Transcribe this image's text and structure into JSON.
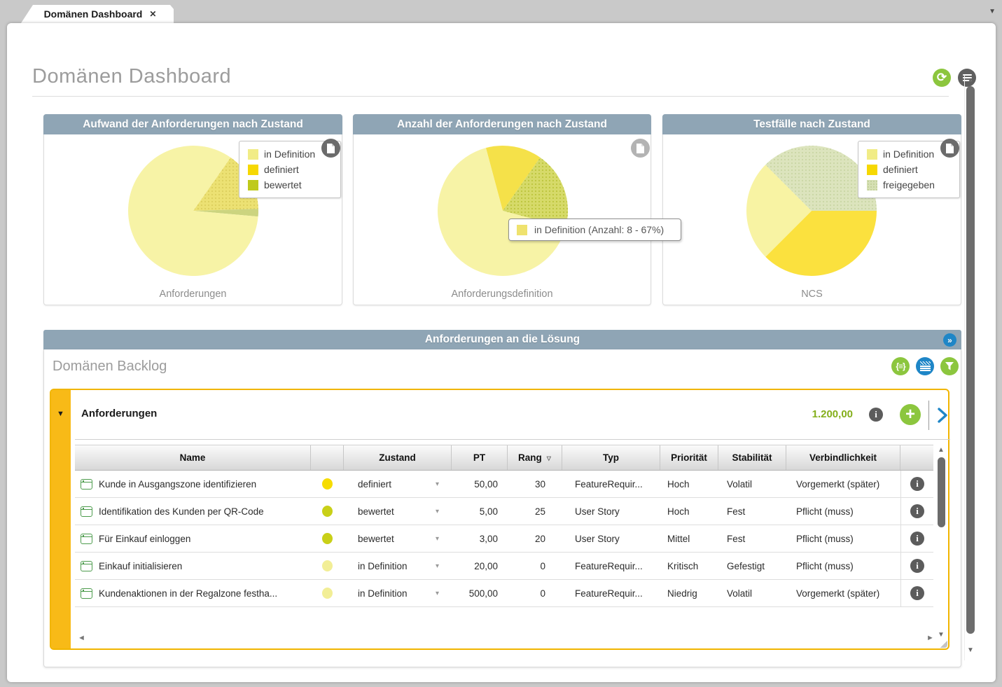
{
  "tab": {
    "title": "Domänen Dashboard"
  },
  "page": {
    "title": "Domänen Dashboard"
  },
  "glyphs": {
    "close": "✕",
    "caret_down": "▼",
    "refresh": "⟳",
    "double_chevron": "»",
    "braces_list": "{≡}",
    "plus": "+",
    "info": "i",
    "dropdown": "▾",
    "sort_down": "▽",
    "up": "▲",
    "down": "▼",
    "left": "◄",
    "right": "►",
    "collapse": "▼"
  },
  "colors": {
    "header_bar": "#8fa5b5",
    "accent_blue": "#1e86c7",
    "accent_green": "#8cc63e",
    "gold_border": "#f1b500",
    "total_green": "#84af1b"
  },
  "chart_data": [
    {
      "type": "pie",
      "title": "Aufwand der Anforderungen nach Zustand",
      "footer_label": "Anforderungen",
      "rotate": 35,
      "segments": [
        {
          "label": "definiert",
          "pct": 14.8,
          "color": "#ece173",
          "dot_color": "#d9cb58"
        },
        {
          "label": "bewertet",
          "pct": 1.9,
          "color": "#ccd47f"
        },
        {
          "label": "in Definition",
          "pct": 83.3,
          "color": "#f7f3a6"
        }
      ]
    },
    {
      "type": "pie",
      "title": "Anzahl der Anforderungen nach Zustand",
      "footer_label": "Anforderungsdefinition",
      "rotate": 345,
      "segments": [
        {
          "label": "definiert",
          "pct": 13.9,
          "color": "#f5e149"
        },
        {
          "label": "bewertet",
          "pct": 19.4,
          "color": "#d6da69",
          "dot_color": "#b7c135"
        },
        {
          "label": "in Definition",
          "pct": 66.7,
          "count": 8,
          "color": "#f7f3a6"
        }
      ]
    },
    {
      "type": "pie",
      "title": "Testfälle nach Zustand",
      "footer_label": "NCS",
      "rotate": 90,
      "segments": [
        {
          "label": "definiert",
          "pct": 37.5,
          "color": "#fbe13e"
        },
        {
          "label": "in Definition",
          "pct": 25.0,
          "color": "#f8f3a3"
        },
        {
          "label": "freigegeben",
          "pct": 37.5,
          "color": "#dce4bd",
          "dot_color": "#c6d3a0"
        }
      ]
    }
  ],
  "panels": [
    {
      "title": "Aufwand der Anforderungen nach Zustand",
      "footer_label": "Anforderungen",
      "legend": [
        {
          "label": "in Definition",
          "color": "#f1ec86"
        },
        {
          "label": "definiert",
          "color": "#f6d802"
        },
        {
          "label": "bewertet",
          "color": "#bfca1b"
        }
      ]
    },
    {
      "title": "Anzahl der Anforderungen nach Zustand",
      "footer_label": "Anforderungsdefinition",
      "tooltip": {
        "text": "in Definition (Anzahl: 8 - 67%)",
        "swatch_color": "#efe26e"
      }
    },
    {
      "title": "Testfälle nach Zustand",
      "footer_label": "NCS",
      "legend": [
        {
          "label": "in Definition",
          "color": "#f1ec86"
        },
        {
          "label": "definiert",
          "color": "#f6d802"
        },
        {
          "label": "freigegeben",
          "color": "#d6e0b4",
          "dot_color": "#c3d19b"
        }
      ]
    }
  ],
  "section": {
    "title": "Anforderungen an die Lösung",
    "subtitle": "Domänen Backlog"
  },
  "backlog": {
    "group_title": "Anforderungen",
    "group_total": "1.200,00",
    "columns": {
      "name": "Name",
      "zustand": "Zustand",
      "pt": "PT",
      "rang": "Rang",
      "typ": "Typ",
      "prioritaet": "Priorität",
      "stabilitaet": "Stabilität",
      "verbindlichkeit": "Verbindlichkeit"
    },
    "rows": [
      {
        "name": "Kunde in Ausgangszone identifizieren",
        "dot_color": "#f6dc00",
        "zustand": "definiert",
        "pt": "50,00",
        "rang": "30",
        "typ": "FeatureRequir...",
        "prioritaet": "Hoch",
        "stabilitaet": "Volatil",
        "verbindlichkeit": "Vorgemerkt (später)"
      },
      {
        "name": "Identifikation des Kunden per QR-Code",
        "dot_color": "#c9d018",
        "zustand": "bewertet",
        "pt": "5,00",
        "rang": "25",
        "typ": "User Story",
        "prioritaet": "Hoch",
        "stabilitaet": "Fest",
        "verbindlichkeit": "Pflicht (muss)"
      },
      {
        "name": "Für Einkauf einloggen",
        "dot_color": "#c9d018",
        "zustand": "bewertet",
        "pt": "3,00",
        "rang": "20",
        "typ": "User Story",
        "prioritaet": "Mittel",
        "stabilitaet": "Fest",
        "verbindlichkeit": "Pflicht (muss)"
      },
      {
        "name": "Einkauf initialisieren",
        "dot_color": "#f2ee96",
        "zustand": "in Definition",
        "pt": "20,00",
        "rang": "0",
        "typ": "FeatureRequir...",
        "prioritaet": "Kritisch",
        "stabilitaet": "Gefestigt",
        "verbindlichkeit": "Pflicht (muss)"
      },
      {
        "name": "Kundenaktionen in der Regalzone festha...",
        "dot_color": "#f2ee96",
        "zustand": "in Definition",
        "pt": "500,00",
        "rang": "0",
        "typ": "FeatureRequir...",
        "prioritaet": "Niedrig",
        "stabilitaet": "Volatil",
        "verbindlichkeit": "Vorgemerkt (später)"
      }
    ]
  }
}
